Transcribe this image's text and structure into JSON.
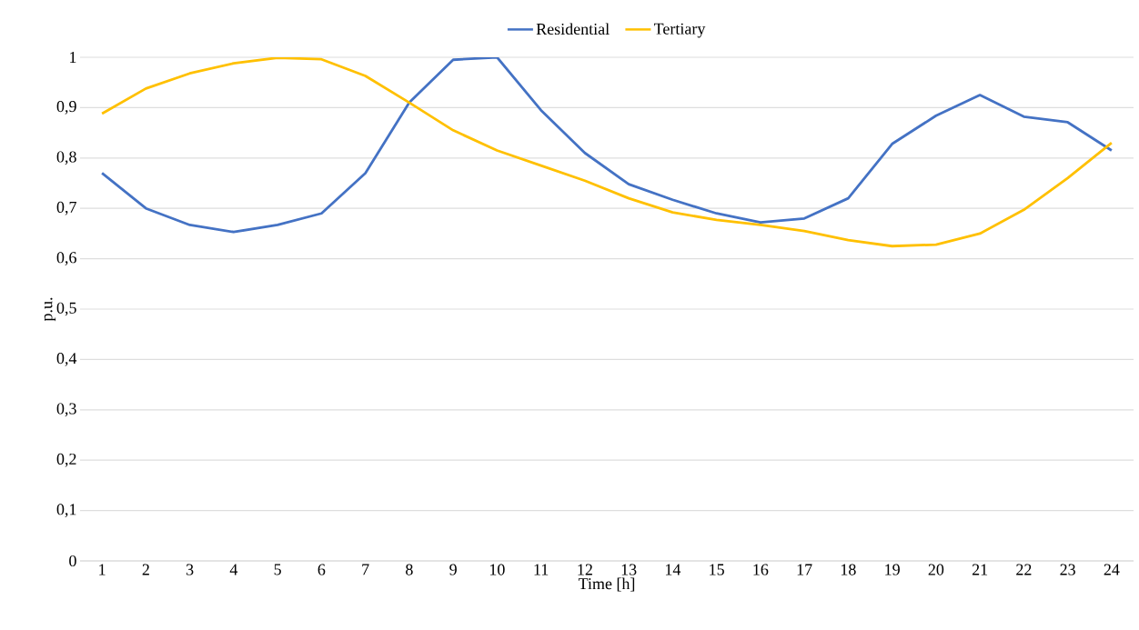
{
  "chart_data": {
    "type": "line",
    "xlabel": "Time [h]",
    "ylabel": "p.u.",
    "categories": [
      "1",
      "2",
      "3",
      "4",
      "5",
      "6",
      "7",
      "8",
      "9",
      "10",
      "11",
      "12",
      "13",
      "14",
      "15",
      "16",
      "17",
      "18",
      "19",
      "20",
      "21",
      "22",
      "23",
      "24"
    ],
    "series": [
      {
        "name": "Residential",
        "color": "#4472c4",
        "values": [
          0.77,
          0.7,
          0.667,
          0.653,
          0.667,
          0.69,
          0.77,
          0.91,
          0.995,
          1.0,
          0.895,
          0.81,
          0.748,
          0.717,
          0.69,
          0.672,
          0.68,
          0.72,
          0.828,
          0.884,
          0.925,
          0.882,
          0.871,
          0.815
        ]
      },
      {
        "name": "Tertiary",
        "color": "#ffc000",
        "values": [
          0.888,
          0.938,
          0.968,
          0.988,
          0.999,
          0.996,
          0.963,
          0.91,
          0.855,
          0.815,
          0.785,
          0.755,
          0.72,
          0.692,
          0.677,
          0.667,
          0.655,
          0.637,
          0.625,
          0.628,
          0.65,
          0.697,
          0.76,
          0.83
        ]
      }
    ],
    "ylim": [
      0,
      1
    ],
    "yticks": [
      {
        "value": 0,
        "label": "0"
      },
      {
        "value": 0.1,
        "label": "0,1"
      },
      {
        "value": 0.2,
        "label": "0,2"
      },
      {
        "value": 0.3,
        "label": "0,3"
      },
      {
        "value": 0.4,
        "label": "0,4"
      },
      {
        "value": 0.5,
        "label": "0,5"
      },
      {
        "value": 0.6,
        "label": "0,6"
      },
      {
        "value": 0.7,
        "label": "0,7"
      },
      {
        "value": 0.8,
        "label": "0,8"
      },
      {
        "value": 0.9,
        "label": "0,9"
      },
      {
        "value": 1,
        "label": "1"
      }
    ],
    "grid": "y",
    "legend": "top",
    "marker": "none",
    "line_style": "solid"
  }
}
